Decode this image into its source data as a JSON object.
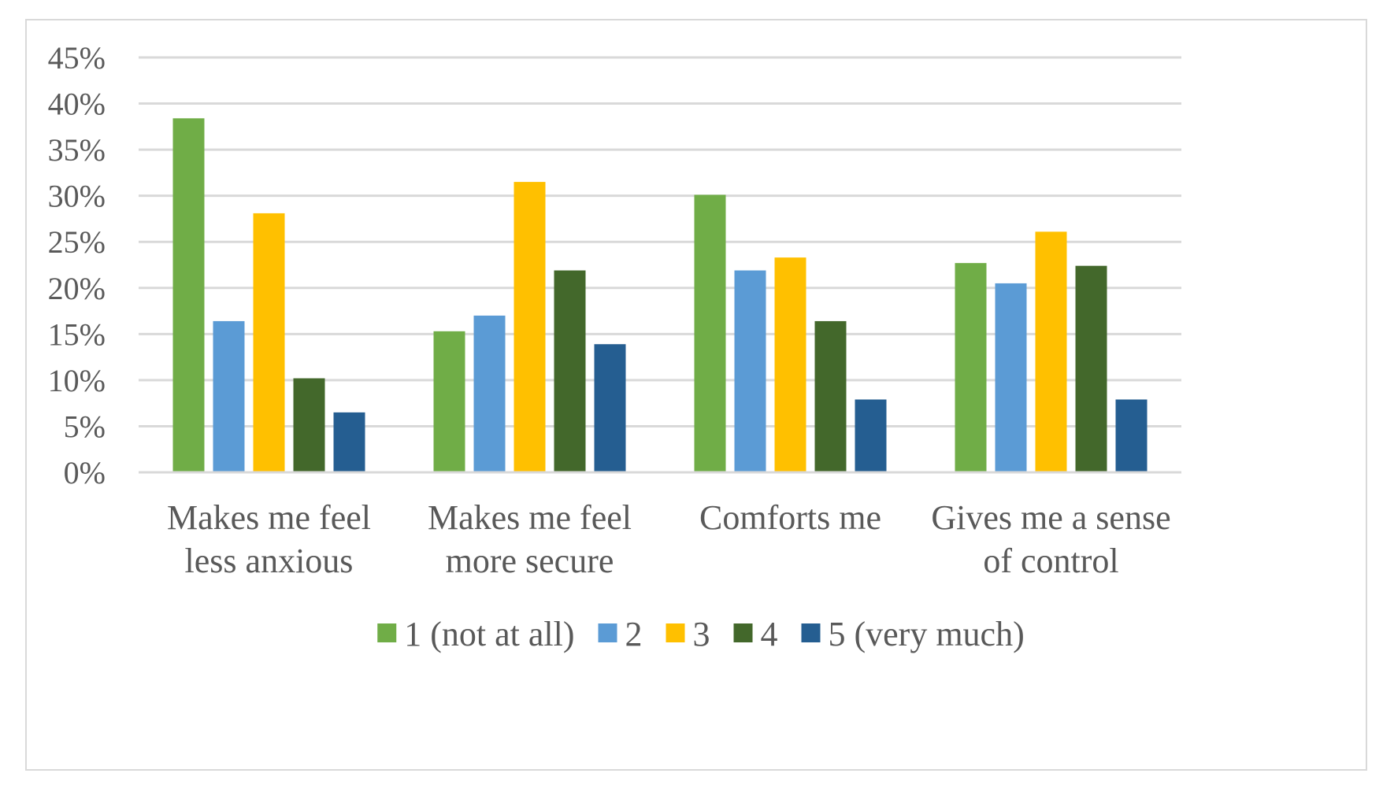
{
  "chart_data": {
    "type": "bar",
    "title": "",
    "xlabel": "",
    "ylabel": "",
    "ylim": [
      0,
      45
    ],
    "y_unit": "%",
    "y_ticks": [
      "0%",
      "5%",
      "10%",
      "15%",
      "20%",
      "25%",
      "30%",
      "35%",
      "40%",
      "45%"
    ],
    "grid": true,
    "legend_position": "bottom",
    "categories": [
      [
        "Makes me feel",
        "less anxious"
      ],
      [
        "Makes me feel",
        "more secure"
      ],
      [
        "Comforts me"
      ],
      [
        "Gives me a sense",
        "of control"
      ]
    ],
    "series": [
      {
        "name": "1 (not at all)",
        "color": "#70ad47",
        "values": [
          38.4,
          15.3,
          30.1,
          22.7
        ]
      },
      {
        "name": "2",
        "color": "#5b9bd5",
        "values": [
          16.4,
          17.0,
          21.9,
          20.5
        ]
      },
      {
        "name": "3",
        "color": "#ffc000",
        "values": [
          28.1,
          31.5,
          23.3,
          26.1
        ]
      },
      {
        "name": "4",
        "color": "#43682b",
        "values": [
          10.2,
          21.9,
          16.4,
          22.4
        ]
      },
      {
        "name": "5 (very much)",
        "color": "#255e91",
        "values": [
          6.5,
          13.9,
          7.9,
          7.9
        ]
      }
    ],
    "gridline_color": "#d9d9d9"
  }
}
